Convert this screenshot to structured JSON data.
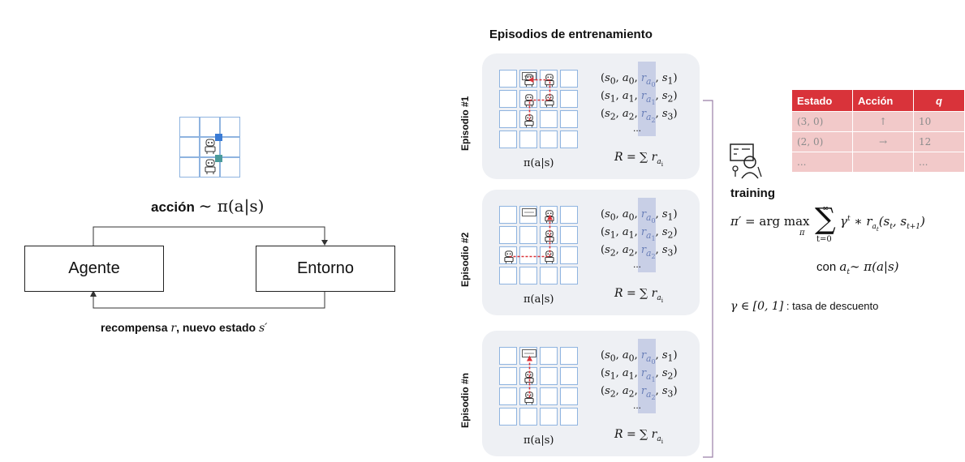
{
  "left": {
    "action_label": "acción",
    "action_formula": "∼ π(a|s)",
    "agent": "Agente",
    "environment": "Entorno",
    "reward_text1": "recompensa",
    "reward_r": "r",
    "reward_text2": ", nuevo estado",
    "reward_s": "s′"
  },
  "episodes": {
    "title": "Episodios de entrenamiento",
    "items": [
      {
        "label": "Episodio #1",
        "pi": "π(a|s)",
        "R": "R = ∑ r",
        "R_sub": "a",
        "R_subsub": "i",
        "ellipsis": "..."
      },
      {
        "label": "Episodio #2",
        "pi": "π(a|s)",
        "R": "R = ∑ r",
        "R_sub": "a",
        "R_subsub": "i",
        "ellipsis": "..."
      },
      {
        "label": "Episodio #n",
        "pi": "π(a|s)",
        "R": "R = ∑ r",
        "R_sub": "a",
        "R_subsub": "i",
        "ellipsis": "..."
      }
    ]
  },
  "qtable": {
    "headers": [
      "Estado",
      "Acción",
      "q"
    ],
    "rows": [
      [
        "(3, 0)",
        "↑",
        "10"
      ],
      [
        "(2, 0)",
        "→",
        "12"
      ],
      [
        "...",
        "",
        "..."
      ]
    ]
  },
  "training": {
    "label": "training",
    "formula_left": "π′ = arg max",
    "formula_under": "π",
    "sum_top": "∞",
    "sum_bottom": "t=0",
    "formula_right": "γ",
    "formula_rest": " ∗ r",
    "condition_prefix": "con",
    "condition": "a",
    "condition_rest": "∼ π(a|s)",
    "gamma_text": "γ ∈ [0, 1]",
    "gamma_desc": ": tasa de descuento"
  },
  "colors": {
    "accent_blue": "#3a7bd5",
    "accent_teal": "#4a9a9a",
    "grid_blue": "#8fb4e0",
    "arrow_red": "#d9333a",
    "table_header": "#d9333a",
    "table_row": "#f2c9c9",
    "episode_bg": "#eef0f4",
    "highlight": "#c8cfe6"
  }
}
